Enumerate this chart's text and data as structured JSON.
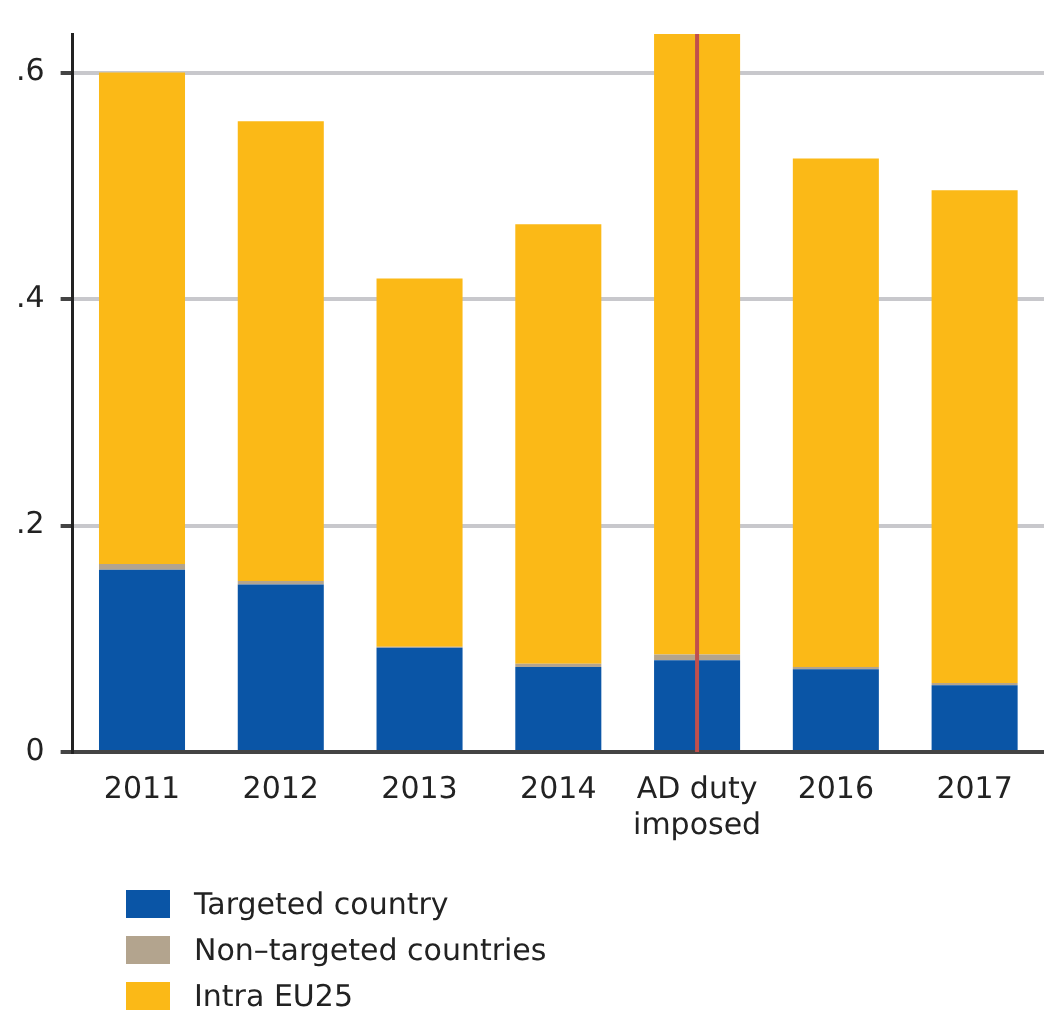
{
  "chart_data": {
    "type": "bar",
    "stacked": true,
    "categories": [
      "2011",
      "2012",
      "2013",
      "2014",
      "AD duty imposed",
      "2016",
      "2017"
    ],
    "series": [
      {
        "name": "Targeted country",
        "color": "#0a55a6",
        "values": [
          0.161,
          0.148,
          0.092,
          0.075,
          0.081,
          0.073,
          0.059
        ]
      },
      {
        "name": "Non–targeted countries",
        "color": "#b3a48e",
        "values": [
          0.005,
          0.003,
          0.001,
          0.003,
          0.005,
          0.002,
          0.002
        ]
      },
      {
        "name": "Intra EU25",
        "color": "#fbb917",
        "values": [
          0.434,
          0.406,
          0.325,
          0.388,
          0.548,
          0.449,
          0.435
        ]
      }
    ],
    "ylim": [
      0,
      0.634
    ],
    "yticks": [
      {
        "value": 0,
        "label": "0"
      },
      {
        "value": 0.2,
        "label": ".2"
      },
      {
        "value": 0.4,
        "label": ".4"
      },
      {
        "value": 0.6,
        "label": ".6"
      }
    ],
    "grid": "y",
    "legend": "bottom left",
    "ref_lines": [
      {
        "axis": "x",
        "value": "AD duty imposed",
        "color": "#c0504d"
      }
    ]
  }
}
